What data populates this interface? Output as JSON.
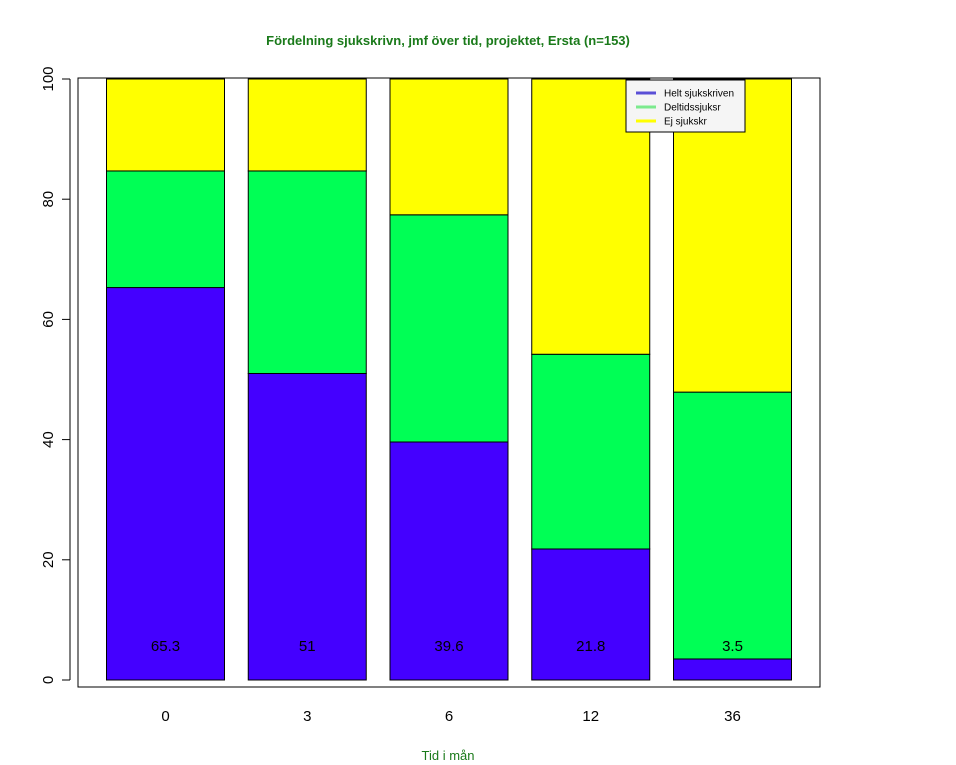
{
  "chart_data": {
    "type": "bar",
    "stacked": true,
    "title": "Fördelning sjukskrivn, jmf över tid, projektet, Ersta (n=153)",
    "xlabel": "Tid i mån",
    "ylabel": "",
    "ylim": [
      0,
      100
    ],
    "yticks": [
      "0",
      "20",
      "40",
      "60",
      "80",
      "100"
    ],
    "categories": [
      "0",
      "3",
      "6",
      "12",
      "36"
    ],
    "series": [
      {
        "name": "Helt sjukskriven",
        "color": "#4400ff",
        "legend_color": "#5a4fd6",
        "values": [
          65.3,
          51,
          39.6,
          21.8,
          3.5
        ]
      },
      {
        "name": "Deltidssjuksr",
        "color": "#00ff55",
        "legend_color": "#7cea8e",
        "values": [
          19.4,
          33.7,
          37.8,
          32.4,
          44.4
        ]
      },
      {
        "name": "Ej sjukskr",
        "color": "#ffff00",
        "legend_color": "#ffff00",
        "values": [
          15.3,
          15.3,
          22.6,
          45.8,
          52.1
        ]
      }
    ],
    "bar_labels": [
      "65.3",
      "51",
      "39.6",
      "21.8",
      "3.5"
    ],
    "title_color": "#1a7a1a",
    "xlabel_color": "#1a7a1a",
    "legend_position": "top-right"
  }
}
